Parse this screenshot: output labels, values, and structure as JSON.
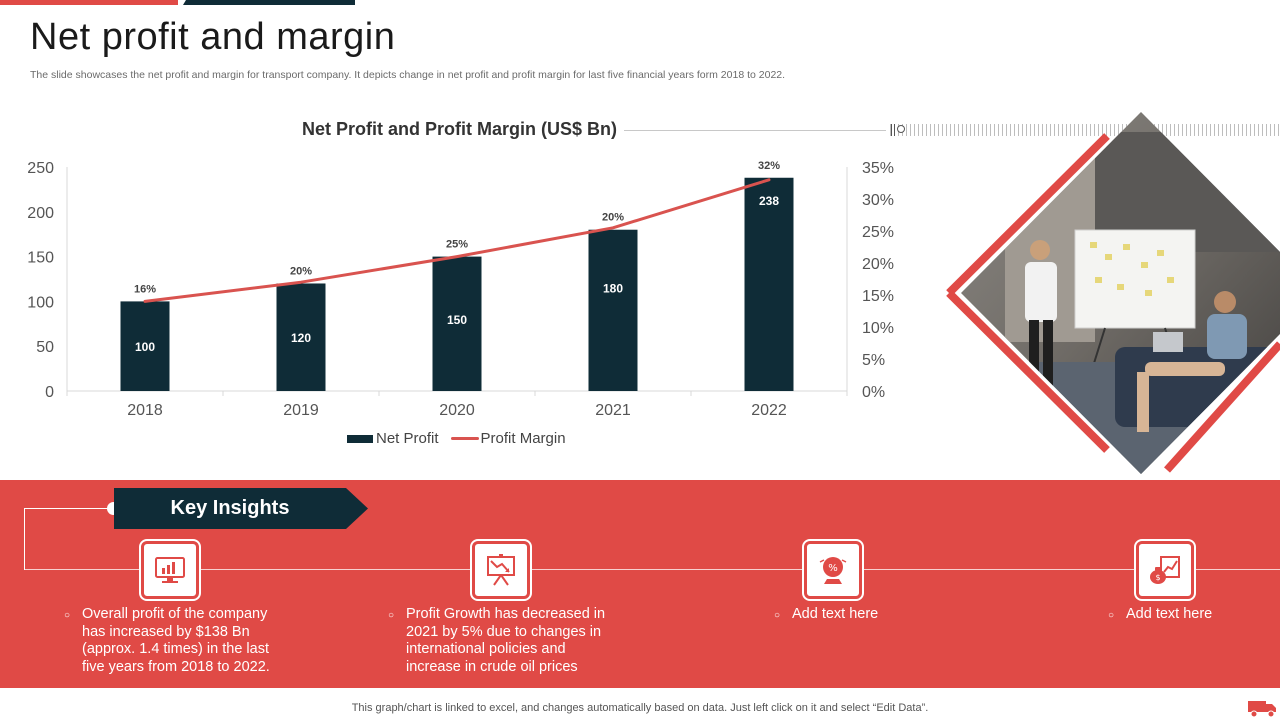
{
  "title": "Net profit and margin",
  "subtitle": "The slide showcases the net profit and margin for transport company. It depicts change in net profit and profit margin for last five financial years form 2018 to 2022.",
  "chart_data": {
    "type": "bar",
    "title": "Net Profit and Profit Margin (US$ Bn)",
    "categories": [
      "2018",
      "2019",
      "2020",
      "2021",
      "2022"
    ],
    "series": [
      {
        "name": "Net Profit",
        "type": "bar",
        "axis": "left",
        "values": [
          100,
          120,
          150,
          180,
          238
        ],
        "color": "#0f2c37"
      },
      {
        "name": "Profit Margin",
        "type": "line",
        "axis": "right",
        "values": [
          14,
          17,
          21,
          25.5,
          33
        ],
        "color": "#d9534f"
      }
    ],
    "bar_top_labels": [
      "16%",
      "20%",
      "25%",
      "20%",
      "32%"
    ],
    "bar_inner_labels": [
      "100",
      "120",
      "150",
      "180",
      "238"
    ],
    "y_left": {
      "min": 0,
      "max": 250,
      "ticks": [
        "0",
        "50",
        "100",
        "150",
        "200",
        "250"
      ]
    },
    "y_right": {
      "min": 0,
      "max": 35,
      "ticks": [
        "0%",
        "5%",
        "10%",
        "15%",
        "20%",
        "25%",
        "30%",
        "35%"
      ]
    },
    "legend_position": "bottom"
  },
  "legend": {
    "bar_label": "Net Profit",
    "line_label": "Profit Margin"
  },
  "insights": {
    "heading": "Key Insights",
    "items": [
      {
        "icon": "presentation-chart-icon",
        "text": "Overall profit of the company has increased by $138 Bn (approx. 1.4 times) in the last five years from 2018 to 2022."
      },
      {
        "icon": "declining-chart-board-icon",
        "text": "Profit Growth has decreased in 2021 by 5% due to changes in international policies and increase in crude oil prices"
      },
      {
        "icon": "globe-percent-icon",
        "text": "Add text here"
      },
      {
        "icon": "money-bag-growth-icon",
        "text": "Add text here"
      }
    ]
  },
  "footer_note": "This graph/chart is linked to excel,  and changes automatically based on data. Just left click on it and select “Edit Data”.",
  "colors": {
    "accent_red": "#e04a46",
    "dark_navy": "#0f2c37",
    "line_red": "#d9534f"
  }
}
